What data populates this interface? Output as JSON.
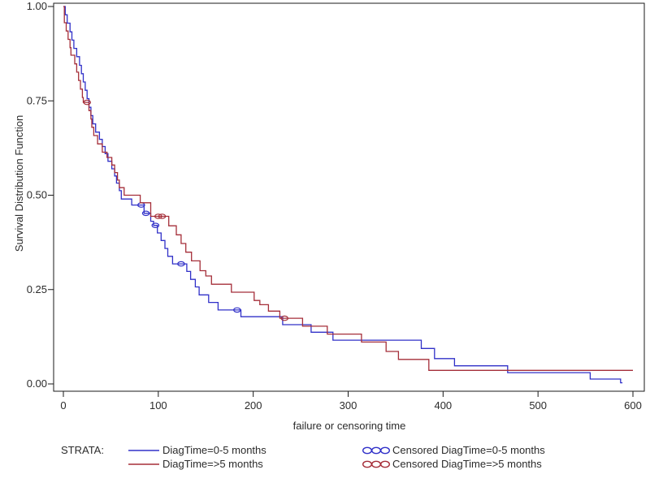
{
  "chart_data": {
    "type": "line",
    "subtype": "kaplan-meier-step-survival",
    "title": "",
    "xlabel": "failure or censoring time",
    "ylabel": "Survival Distribution Function",
    "xlim": [
      0,
      600
    ],
    "ylim": [
      0.0,
      1.0
    ],
    "grid": false,
    "x_ticks": [
      {
        "label": "0",
        "value": 0
      },
      {
        "label": "100",
        "value": 100
      },
      {
        "label": "200",
        "value": 200
      },
      {
        "label": "300",
        "value": 300
      },
      {
        "label": "400",
        "value": 400
      },
      {
        "label": "500",
        "value": 500
      },
      {
        "label": "600",
        "value": 600
      }
    ],
    "y_ticks": [
      {
        "label": "0.00",
        "value": 0.0
      },
      {
        "label": "0.25",
        "value": 0.25
      },
      {
        "label": "0.50",
        "value": 0.5
      },
      {
        "label": "0.75",
        "value": 0.75
      },
      {
        "label": "1.00",
        "value": 1.0
      }
    ],
    "series": [
      {
        "name": "DiagTime=0-5 months",
        "color": "#3030c8",
        "end_time": 589,
        "points": [
          [
            0,
            1.0
          ],
          [
            2,
            0.978
          ],
          [
            4,
            0.956
          ],
          [
            7,
            0.933
          ],
          [
            9,
            0.911
          ],
          [
            11,
            0.889
          ],
          [
            14,
            0.867
          ],
          [
            17,
            0.844
          ],
          [
            19,
            0.822
          ],
          [
            21,
            0.8
          ],
          [
            23,
            0.778
          ],
          [
            25,
            0.756
          ],
          [
            27,
            0.733
          ],
          [
            29,
            0.711
          ],
          [
            31,
            0.689
          ],
          [
            34,
            0.667
          ],
          [
            38,
            0.648
          ],
          [
            41,
            0.629
          ],
          [
            44,
            0.61
          ],
          [
            47,
            0.59
          ],
          [
            51,
            0.57
          ],
          [
            54,
            0.551
          ],
          [
            56,
            0.532
          ],
          [
            59,
            0.512
          ],
          [
            61,
            0.49
          ],
          [
            72,
            0.474
          ],
          [
            85,
            0.452
          ],
          [
            92,
            0.431
          ],
          [
            95,
            0.42
          ],
          [
            99,
            0.4
          ],
          [
            103,
            0.38
          ],
          [
            107,
            0.359
          ],
          [
            110,
            0.338
          ],
          [
            115,
            0.318
          ],
          [
            130,
            0.298
          ],
          [
            134,
            0.277
          ],
          [
            139,
            0.257
          ],
          [
            143,
            0.236
          ],
          [
            153,
            0.216
          ],
          [
            163,
            0.196
          ],
          [
            187,
            0.178
          ],
          [
            231,
            0.157
          ],
          [
            261,
            0.137
          ],
          [
            284,
            0.116
          ],
          [
            377,
            0.094
          ],
          [
            391,
            0.067
          ],
          [
            412,
            0.048
          ],
          [
            468,
            0.03
          ],
          [
            555,
            0.013
          ],
          [
            587,
            0.003
          ]
        ],
        "censored_points": [
          [
            82,
            0.474
          ],
          [
            87,
            0.452
          ],
          [
            97,
            0.42
          ],
          [
            124,
            0.318
          ],
          [
            183,
            0.196
          ]
        ]
      },
      {
        "name": "DiagTime=>5 months",
        "color": "#a52e39",
        "end_time": 600,
        "points": [
          [
            0,
            1.0
          ],
          [
            1,
            0.957
          ],
          [
            3,
            0.935
          ],
          [
            5,
            0.913
          ],
          [
            7,
            0.891
          ],
          [
            8,
            0.871
          ],
          [
            12,
            0.848
          ],
          [
            14,
            0.826
          ],
          [
            16,
            0.804
          ],
          [
            18,
            0.781
          ],
          [
            20,
            0.759
          ],
          [
            21,
            0.746
          ],
          [
            27,
            0.724
          ],
          [
            29,
            0.702
          ],
          [
            30,
            0.68
          ],
          [
            32,
            0.658
          ],
          [
            36,
            0.636
          ],
          [
            41,
            0.614
          ],
          [
            46,
            0.6
          ],
          [
            51,
            0.58
          ],
          [
            54,
            0.56
          ],
          [
            57,
            0.54
          ],
          [
            59,
            0.52
          ],
          [
            64,
            0.5
          ],
          [
            81,
            0.48
          ],
          [
            92,
            0.444
          ],
          [
            111,
            0.419
          ],
          [
            119,
            0.395
          ],
          [
            124,
            0.372
          ],
          [
            129,
            0.349
          ],
          [
            135,
            0.326
          ],
          [
            144,
            0.3
          ],
          [
            150,
            0.286
          ],
          [
            156,
            0.264
          ],
          [
            177,
            0.243
          ],
          [
            201,
            0.221
          ],
          [
            207,
            0.21
          ],
          [
            216,
            0.193
          ],
          [
            228,
            0.174
          ],
          [
            252,
            0.153
          ],
          [
            278,
            0.132
          ],
          [
            314,
            0.111
          ],
          [
            340,
            0.086
          ],
          [
            353,
            0.065
          ],
          [
            385,
            0.036
          ]
        ],
        "censored_points": [
          [
            25,
            0.746
          ],
          [
            100,
            0.444
          ],
          [
            104,
            0.444
          ],
          [
            233,
            0.174
          ]
        ]
      }
    ],
    "legend": {
      "strata_label": "STRATA:",
      "items": [
        {
          "swatch": "line",
          "color": "#3030c8",
          "label": "DiagTime=0-5 months"
        },
        {
          "swatch": "line",
          "color": "#a52e39",
          "label": "DiagTime=>5 months"
        },
        {
          "swatch": "circles",
          "color": "#3030c8",
          "label": "Censored DiagTime=0-5 months"
        },
        {
          "swatch": "circles",
          "color": "#a52e39",
          "label": "Censored DiagTime=>5 months"
        }
      ]
    }
  }
}
